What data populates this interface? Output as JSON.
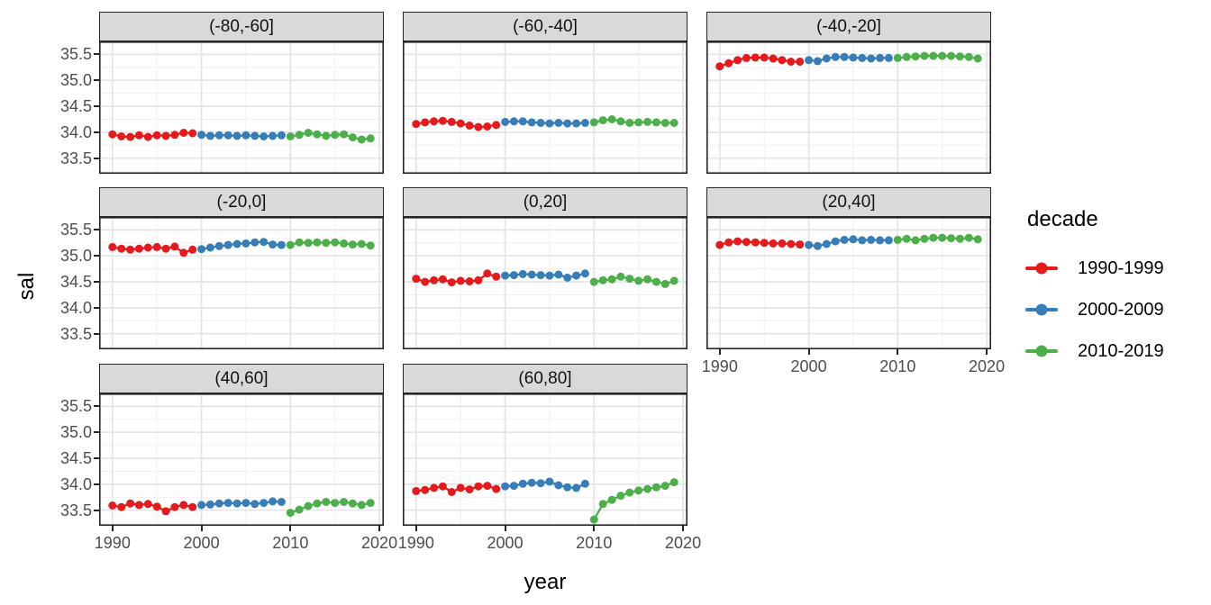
{
  "figure": {
    "y_axis_title": "sal",
    "x_axis_title": "year",
    "legend": {
      "title": "decade"
    }
  },
  "chart_data": {
    "type": "line",
    "title": "",
    "xlabel": "year",
    "ylabel": "sal",
    "facet_variable": "latitude band",
    "legend_position": "right",
    "grid": true,
    "x_ticks": [
      1990,
      2000,
      2010,
      2020
    ],
    "y_ticks": [
      33.5,
      34.0,
      34.5,
      35.0,
      35.5
    ],
    "x_minor": [
      1995,
      2005,
      2015
    ],
    "y_minor": [
      33.25,
      33.75,
      34.25,
      34.75,
      35.25,
      35.75
    ],
    "xlim": [
      1988.5,
      2020.5
    ],
    "ylim": [
      33.2,
      35.75
    ],
    "decades": [
      {
        "name": "1990-1999",
        "start_year": 1990,
        "color": "#E41A1C"
      },
      {
        "name": "2000-2009",
        "start_year": 2000,
        "color": "#377EB8"
      },
      {
        "name": "2010-2019",
        "start_year": 2010,
        "color": "#4DAF4A"
      }
    ],
    "facets": [
      {
        "label": "(-80,-60]",
        "series": [
          {
            "name": "1990-1999",
            "values": [
              33.96,
              33.92,
              33.91,
              33.94,
              33.91,
              33.94,
              33.93,
              33.95,
              33.99,
              33.98
            ]
          },
          {
            "name": "2000-2009",
            "values": [
              33.95,
              33.93,
              33.94,
              33.94,
              33.93,
              33.94,
              33.93,
              33.92,
              33.93,
              33.94
            ]
          },
          {
            "name": "2010-2019",
            "values": [
              33.92,
              33.95,
              33.99,
              33.96,
              33.93,
              33.95,
              33.96,
              33.9,
              33.86,
              33.88
            ]
          }
        ]
      },
      {
        "label": "(-60,-40]",
        "series": [
          {
            "name": "1990-1999",
            "values": [
              34.16,
              34.19,
              34.21,
              34.22,
              34.2,
              34.17,
              34.13,
              34.1,
              34.11,
              34.14
            ]
          },
          {
            "name": "2000-2009",
            "values": [
              34.2,
              34.21,
              34.21,
              34.19,
              34.18,
              34.17,
              34.18,
              34.17,
              34.17,
              34.18
            ]
          },
          {
            "name": "2010-2019",
            "values": [
              34.19,
              34.23,
              34.25,
              34.21,
              34.18,
              34.19,
              34.2,
              34.19,
              34.18,
              34.18
            ]
          }
        ]
      },
      {
        "label": "(-40,-20]",
        "series": [
          {
            "name": "1990-1999",
            "values": [
              35.27,
              35.33,
              35.39,
              35.43,
              35.44,
              35.44,
              35.42,
              35.39,
              35.36,
              35.36
            ]
          },
          {
            "name": "2000-2009",
            "values": [
              35.39,
              35.37,
              35.42,
              35.45,
              35.45,
              35.44,
              35.43,
              35.42,
              35.43,
              35.43
            ]
          },
          {
            "name": "2010-2019",
            "values": [
              35.43,
              35.45,
              35.46,
              35.47,
              35.47,
              35.47,
              35.47,
              35.46,
              35.45,
              35.42
            ]
          }
        ]
      },
      {
        "label": "(-20,0]",
        "series": [
          {
            "name": "1990-1999",
            "values": [
              35.17,
              35.14,
              35.12,
              35.14,
              35.16,
              35.17,
              35.14,
              35.18,
              35.06,
              35.12
            ]
          },
          {
            "name": "2000-2009",
            "values": [
              35.13,
              35.16,
              35.19,
              35.21,
              35.23,
              35.24,
              35.26,
              35.27,
              35.22,
              35.21
            ]
          },
          {
            "name": "2010-2019",
            "values": [
              35.21,
              35.26,
              35.25,
              35.26,
              35.25,
              35.26,
              35.24,
              35.22,
              35.23,
              35.2
            ]
          }
        ]
      },
      {
        "label": "(0,20]",
        "series": [
          {
            "name": "1990-1999",
            "values": [
              34.56,
              34.5,
              34.53,
              34.55,
              34.49,
              34.52,
              34.51,
              34.53,
              34.66,
              34.6
            ]
          },
          {
            "name": "2000-2009",
            "values": [
              34.62,
              34.63,
              34.65,
              34.64,
              34.63,
              34.62,
              34.64,
              34.58,
              34.62,
              34.66
            ]
          },
          {
            "name": "2010-2019",
            "values": [
              34.5,
              34.53,
              34.55,
              34.6,
              34.56,
              34.52,
              34.55,
              34.5,
              34.46,
              34.52
            ]
          }
        ]
      },
      {
        "label": "(20,40]",
        "series": [
          {
            "name": "1990-1999",
            "values": [
              35.21,
              35.26,
              35.28,
              35.27,
              35.26,
              35.25,
              35.24,
              35.24,
              35.23,
              35.22
            ]
          },
          {
            "name": "2000-2009",
            "values": [
              35.21,
              35.19,
              35.23,
              35.28,
              35.31,
              35.32,
              35.3,
              35.31,
              35.3,
              35.3
            ]
          },
          {
            "name": "2010-2019",
            "values": [
              35.31,
              35.33,
              35.3,
              35.33,
              35.35,
              35.35,
              35.34,
              35.33,
              35.35,
              35.32
            ]
          }
        ]
      },
      {
        "label": "(40,60]",
        "series": [
          {
            "name": "1990-1999",
            "values": [
              33.59,
              33.56,
              33.63,
              33.6,
              33.62,
              33.57,
              33.48,
              33.56,
              33.6,
              33.56
            ]
          },
          {
            "name": "2000-2009",
            "values": [
              33.6,
              33.61,
              33.63,
              33.64,
              33.63,
              33.64,
              33.62,
              33.64,
              33.67,
              33.66
            ]
          },
          {
            "name": "2010-2019",
            "values": [
              33.45,
              33.51,
              33.58,
              33.63,
              33.66,
              33.64,
              33.66,
              33.63,
              33.6,
              33.64
            ]
          }
        ]
      },
      {
        "label": "(60,80]",
        "series": [
          {
            "name": "1990-1999",
            "values": [
              33.87,
              33.89,
              33.93,
              33.96,
              33.85,
              33.93,
              33.9,
              33.96,
              33.97,
              33.91
            ]
          },
          {
            "name": "2000-2009",
            "values": [
              33.96,
              33.97,
              34.01,
              34.03,
              34.02,
              34.05,
              33.98,
              33.94,
              33.93,
              34.01
            ]
          },
          {
            "name": "2010-2019",
            "values": [
              33.32,
              33.62,
              33.7,
              33.78,
              33.84,
              33.88,
              33.91,
              33.94,
              33.97,
              34.04
            ]
          }
        ]
      }
    ]
  }
}
